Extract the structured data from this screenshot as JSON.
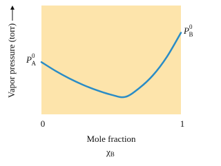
{
  "chart_data": {
    "type": "line",
    "y_label": "Vapor pressure (torr)",
    "x_label": "Mole fraction",
    "x_symbol": {
      "text": "χ",
      "sub": "B"
    },
    "annotations": [
      {
        "text": "P",
        "sup": "0",
        "sub": "A"
      },
      {
        "text": "P",
        "sup": "0",
        "sub": "B"
      }
    ],
    "x": [
      0,
      0.1,
      0.2,
      0.3,
      0.4,
      0.5,
      0.6,
      0.7,
      0.8,
      0.9,
      1
    ],
    "series": [
      {
        "color": "#2a8cc6",
        "values": [
          48,
          40,
          33,
          27,
          22,
          18,
          16,
          24,
          36,
          53,
          75
        ]
      }
    ],
    "xlim": [
      0,
      1
    ],
    "ylim": [
      0,
      100
    ],
    "xticks": [
      0,
      1
    ],
    "background": "#fde4ab"
  }
}
